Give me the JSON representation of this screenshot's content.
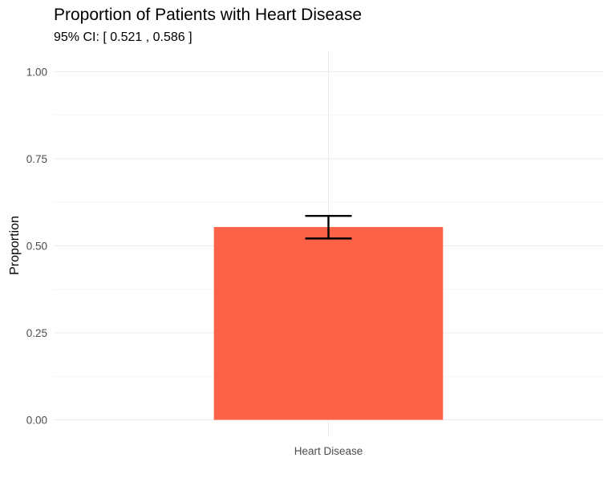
{
  "chart_data": {
    "type": "bar",
    "title": "Proportion of Patients with Heart Disease",
    "subtitle": "95% CI: [ 0.521 , 0.586 ]",
    "xlabel": "",
    "ylabel": "Proportion",
    "categories": [
      "Heart Disease"
    ],
    "values": [
      0.554
    ],
    "error_bars": [
      {
        "lower": 0.521,
        "upper": 0.586
      }
    ],
    "ylim": [
      0,
      1.04
    ],
    "y_ticks": [
      0,
      0.25,
      0.5,
      0.75,
      1.0
    ],
    "y_tick_labels": [
      "0.00",
      "0.25",
      "0.50",
      "0.75",
      "1.00"
    ],
    "grid": true,
    "legend": "none",
    "colors": {
      "bar": "#FF6347",
      "error_bar": "#000000",
      "grid_major": "#EBEBEB",
      "grid_minor": "#F2F2F2"
    }
  }
}
